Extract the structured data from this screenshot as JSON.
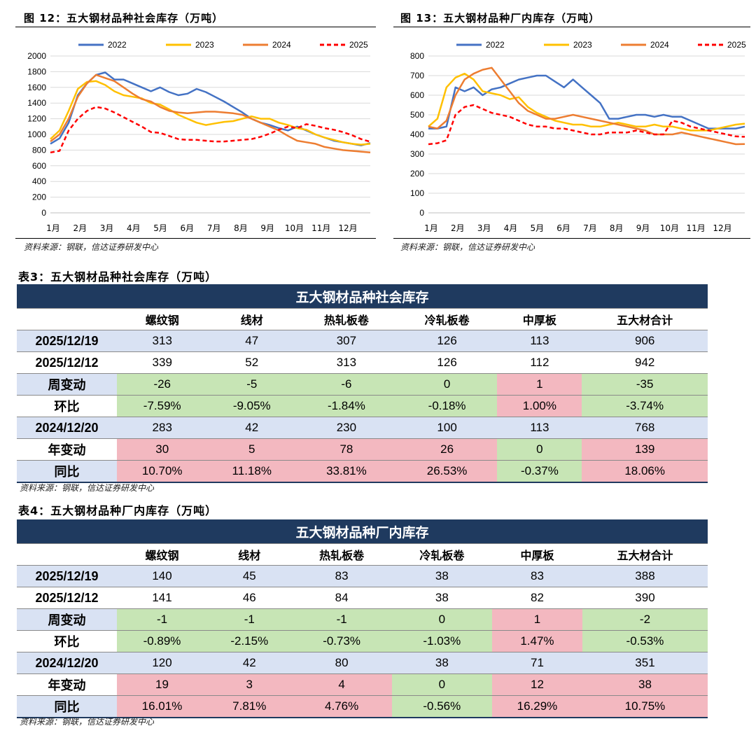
{
  "charts": [
    {
      "title": "图 12：五大钢材品种社会库存（万吨）",
      "source": "资料来源：钢联，信达证券研发中心",
      "chart_data": {
        "type": "line",
        "title": "五大钢材品种社会库存（万吨）",
        "x_labels": [
          "1月",
          "2月",
          "3月",
          "4月",
          "5月",
          "6月",
          "7月",
          "8月",
          "9月",
          "10月",
          "11月",
          "12月"
        ],
        "y_ticks": [
          0,
          200,
          400,
          600,
          800,
          1000,
          1200,
          1400,
          1600,
          1800,
          2000
        ],
        "ylim": [
          0,
          2000
        ],
        "series": [
          {
            "name": "2022",
            "color": "#4472c4",
            "dash": "",
            "values": [
              880,
              950,
              1150,
              1500,
              1650,
              1760,
              1790,
              1700,
              1700,
              1650,
              1600,
              1550,
              1600,
              1540,
              1500,
              1520,
              1580,
              1540,
              1480,
              1420,
              1350,
              1280,
              1200,
              1150,
              1120,
              1080,
              1050,
              1100,
              1050,
              1000,
              960,
              920,
              900,
              880,
              860,
              890
            ]
          },
          {
            "name": "2023",
            "color": "#ffc000",
            "dash": "",
            "values": [
              940,
              1050,
              1300,
              1580,
              1670,
              1680,
              1630,
              1550,
              1500,
              1480,
              1460,
              1400,
              1380,
              1320,
              1250,
              1200,
              1150,
              1120,
              1140,
              1160,
              1170,
              1200,
              1230,
              1200,
              1200,
              1150,
              1120,
              1080,
              1060,
              1000,
              960,
              930,
              900,
              880,
              870,
              880
            ]
          },
          {
            "name": "2024",
            "color": "#ed7d31",
            "dash": "",
            "values": [
              910,
              1000,
              1200,
              1480,
              1650,
              1760,
              1720,
              1680,
              1600,
              1520,
              1450,
              1420,
              1350,
              1300,
              1280,
              1270,
              1280,
              1290,
              1290,
              1280,
              1270,
              1250,
              1200,
              1150,
              1100,
              1050,
              980,
              920,
              900,
              880,
              840,
              820,
              800,
              790,
              780,
              770
            ]
          },
          {
            "name": "2025",
            "color": "#ff0000",
            "dash": "6,4",
            "values": [
              770,
              790,
              1050,
              1200,
              1300,
              1350,
              1330,
              1280,
              1220,
              1160,
              1100,
              1030,
              1020,
              980,
              940,
              930,
              930,
              920,
              910,
              910,
              920,
              930,
              940,
              970,
              1010,
              1060,
              1100,
              1080,
              1130,
              1110,
              1080,
              1060,
              1030,
              990,
              940,
              906
            ]
          }
        ]
      }
    },
    {
      "title": "图 13：五大钢材品种厂内库存（万吨）",
      "source": "资料来源：钢联，信达证券研发中心",
      "chart_data": {
        "type": "line",
        "title": "五大钢材品种厂内库存（万吨）",
        "x_labels": [
          "1月",
          "2月",
          "3月",
          "4月",
          "5月",
          "6月",
          "7月",
          "8月",
          "9月",
          "10月",
          "11月",
          "12月"
        ],
        "y_ticks": [
          0,
          100,
          200,
          300,
          400,
          500,
          600,
          700,
          800
        ],
        "ylim": [
          0,
          800
        ],
        "series": [
          {
            "name": "2022",
            "color": "#4472c4",
            "dash": "",
            "values": [
              430,
              430,
              440,
              640,
              620,
              640,
              600,
              630,
              640,
              660,
              680,
              690,
              700,
              700,
              670,
              640,
              680,
              640,
              600,
              560,
              480,
              480,
              490,
              500,
              500,
              490,
              500,
              490,
              490,
              470,
              450,
              430,
              430,
              430,
              430,
              440
            ]
          },
          {
            "name": "2023",
            "color": "#ffc000",
            "dash": "",
            "values": [
              440,
              480,
              640,
              690,
              710,
              680,
              620,
              610,
              600,
              580,
              590,
              540,
              510,
              490,
              470,
              460,
              450,
              450,
              440,
              440,
              450,
              460,
              450,
              440,
              440,
              450,
              440,
              440,
              430,
              420,
              420,
              420,
              430,
              440,
              450,
              455
            ]
          },
          {
            "name": "2024",
            "color": "#ed7d31",
            "dash": "",
            "values": [
              440,
              430,
              470,
              600,
              680,
              710,
              730,
              740,
              680,
              620,
              560,
              520,
              500,
              480,
              480,
              490,
              500,
              490,
              480,
              470,
              460,
              450,
              440,
              430,
              420,
              400,
              400,
              400,
              410,
              400,
              390,
              380,
              370,
              360,
              350,
              351
            ]
          },
          {
            "name": "2025",
            "color": "#ff0000",
            "dash": "6,4",
            "values": [
              350,
              355,
              370,
              500,
              540,
              550,
              530,
              510,
              500,
              490,
              470,
              450,
              440,
              440,
              430,
              430,
              420,
              410,
              400,
              400,
              410,
              410,
              410,
              420,
              410,
              400,
              400,
              470,
              460,
              440,
              430,
              420,
              410,
              400,
              390,
              388
            ]
          }
        ]
      }
    }
  ],
  "tables": [
    {
      "caption": "表3：五大钢材品种社会库存（万吨）",
      "header": "五大钢材品种社会库存",
      "columns": [
        "",
        "螺纹钢",
        "线材",
        "热轧板卷",
        "冷轧板卷",
        "中厚板",
        "五大材合计"
      ],
      "rows": [
        {
          "label": "2025/12/19",
          "cells": [
            "313",
            "47",
            "307",
            "126",
            "113",
            "906"
          ]
        },
        {
          "label": "2025/12/12",
          "cells": [
            "339",
            "52",
            "313",
            "126",
            "112",
            "942"
          ]
        },
        {
          "label": "周变动",
          "cells": [
            "-26",
            "-5",
            "-6",
            "0",
            "1",
            "-35"
          ]
        },
        {
          "label": "环比",
          "cells": [
            "-7.59%",
            "-9.05%",
            "-1.84%",
            "-0.18%",
            "1.00%",
            "-3.74%"
          ]
        },
        {
          "label": "2024/12/20",
          "cells": [
            "283",
            "42",
            "230",
            "100",
            "113",
            "768"
          ]
        },
        {
          "label": "年变动",
          "cells": [
            "30",
            "5",
            "78",
            "26",
            "0",
            "139"
          ]
        },
        {
          "label": "同比",
          "cells": [
            "10.70%",
            "11.18%",
            "33.81%",
            "26.53%",
            "-0.37%",
            "18.06%"
          ]
        }
      ],
      "source": "资料来源：钢联，信达证券研发中心"
    },
    {
      "caption": "表4：五大钢材品种厂内库存（万吨）",
      "header": "五大钢材品种厂内库存",
      "columns": [
        "",
        "螺纹钢",
        "线材",
        "热轧板卷",
        "冷轧板卷",
        "中厚板",
        "五大材合计"
      ],
      "rows": [
        {
          "label": "2025/12/19",
          "cells": [
            "140",
            "45",
            "83",
            "38",
            "83",
            "388"
          ]
        },
        {
          "label": "2025/12/12",
          "cells": [
            "141",
            "46",
            "84",
            "38",
            "82",
            "390"
          ]
        },
        {
          "label": "周变动",
          "cells": [
            "-1",
            "-1",
            "-1",
            "0",
            "1",
            "-2"
          ]
        },
        {
          "label": "环比",
          "cells": [
            "-0.89%",
            "-2.15%",
            "-0.73%",
            "-1.03%",
            "1.47%",
            "-0.53%"
          ]
        },
        {
          "label": "2024/12/20",
          "cells": [
            "120",
            "42",
            "80",
            "38",
            "71",
            "351"
          ]
        },
        {
          "label": "年变动",
          "cells": [
            "19",
            "3",
            "4",
            "0",
            "12",
            "38"
          ]
        },
        {
          "label": "同比",
          "cells": [
            "16.01%",
            "7.81%",
            "4.76%",
            "-0.56%",
            "16.29%",
            "10.75%"
          ]
        }
      ],
      "source": "资料来源：钢联，信达证券研发中心"
    }
  ]
}
